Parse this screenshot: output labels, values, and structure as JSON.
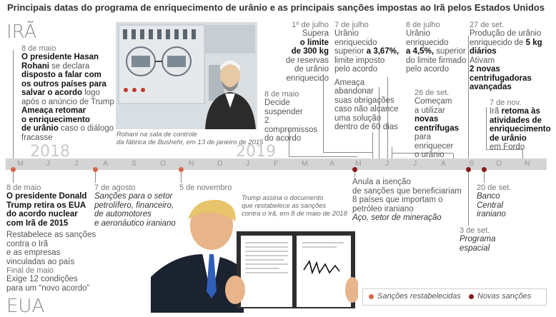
{
  "subtitle": "Principais datas do programa de enriquecimento de urânio e as principais sanções impostas ao Irã pelos Estados Unidos",
  "labels": {
    "iran": "IRÃ",
    "usa": "EUA",
    "year2018": "2018",
    "year2019": "2019"
  },
  "months": [
    "M",
    "J",
    "J",
    "A",
    "S",
    "O",
    "N",
    "D",
    "J",
    "F",
    "M",
    "A",
    "M",
    "J",
    "J",
    "A",
    "S",
    "O",
    "N"
  ],
  "iran_events": {
    "e1_date": "8 de maio",
    "e1_a": "O presidente Hasan",
    "e1_b_bold": "Rohani",
    "e1_b_rest": " se declara",
    "e1_c": "disposto a falar com",
    "e1_d": "os outros países para",
    "e1_e_bold": "salvar o acordo",
    "e1_e_rest": " logo",
    "e1_f": "após o anúncio de Trump",
    "e1_g": "Ameaça retomar",
    "e1_h": "o enriquecimento",
    "e1_i_bold": "de urânio",
    "e1_i_rest": " caso o diálogo",
    "e1_j": "fracasse",
    "e2_date": "8 de maio",
    "e2_a": "Decide",
    "e2_b": "suspender",
    "e2_c": "2 compromissos",
    "e2_d": "do acordo",
    "e3_date": "1º de julho",
    "e3_a": "Supera",
    "e3_b": "o limite",
    "e3_c": "de 300 kg",
    "e3_d": "de reservas",
    "e3_e": "de urânio",
    "e3_f": "enriquecido",
    "e4_date": "7 de julho",
    "e4_a": "Urânio enriquecido",
    "e4_b_rest": "superior ",
    "e4_b_bold": "a 3,67%,",
    "e4_c": "limite imposto",
    "e4_d": "pelo acordo",
    "e4_e": "Ameaça",
    "e4_f": "abandonar",
    "e4_g": "suas obrigações",
    "e4_h": "caso não alcance",
    "e4_i": "uma solução",
    "e4_j": "dentro de 60 dias",
    "e5_date": "8 de julho",
    "e5_a": "Urânio",
    "e5_b": "enriquecido",
    "e5_c_bold": "a 4,5%,",
    "e5_c_rest": " superior",
    "e5_d": "do limite firmado",
    "e5_e": "pelo acordo",
    "e6_date": "26 de set.",
    "e6_a": "Começam",
    "e6_b": "a utilizar",
    "e6_c": "novas",
    "e6_d": "centrífugas",
    "e6_e": "para enriquecer",
    "e6_f": "o urânio",
    "e7_date": "27 de set.",
    "e7_a": "Produção de urânio",
    "e7_b_rest": "enriquecido de ",
    "e7_b_bold": "5 kg",
    "e7_c": "diários",
    "e7_d": "Ativam",
    "e7_e": "2 novas",
    "e7_f": "centrifugadoras",
    "e7_g": "avançadas",
    "e8_date": "7 de nov.",
    "e8_a_rest": "Irã ",
    "e8_a_bold": "retoma às",
    "e8_b": "atividades de",
    "e8_c": "enriquecimento",
    "e8_d": "de urânio",
    "e8_e": "em Fordo"
  },
  "usa_events": {
    "u1_date": "8 de maio",
    "u1_a": "O presidente Donald",
    "u1_b": "Trump retira os EUA",
    "u1_c": "do acordo nuclear",
    "u1_d": "com Irã de 2015",
    "u1_e": "Restabelece as sanções",
    "u1_f": "contra o Irã",
    "u1_g": "e as empresas",
    "u1_h": "vinculadas ao país",
    "u1_i": "Final de maio",
    "u1_j": "Exige 12 condições",
    "u1_k": "para um “novo acordo”",
    "u2_date": "7 de agosto",
    "u2_a": "Sanções para o setor",
    "u2_b": "petrolífero, financeiro,",
    "u2_c": "de automotores",
    "u2_d": "e aeronáutico iraniano",
    "u3_date": "5 de novembro",
    "u4_a": "Anula a isenção",
    "u4_b": "de sanções que beneficiariam",
    "u4_c": "8 países que importam o",
    "u4_d": "petróleo iraniano",
    "u4_e": "Aço, setor de mineração",
    "u5_date": "3 de set.",
    "u5_a": "Programa",
    "u5_b": "espacial",
    "u6_date": "20 de set.",
    "u6_a": "Banco",
    "u6_b": "Central",
    "u6_c": "iraniano"
  },
  "captions": {
    "photo1_a": "Rohani na sala de controle",
    "photo1_b": "da fábrica de Bushehr, em 13 de janeiro de 2015",
    "photo2_a": "Trump assina o documento",
    "photo2_b": "que restabelece as sanções",
    "photo2_c": "contra o Irã, em 8 de maio de 2018"
  },
  "legend": {
    "restored": "Sanções restabelecidas",
    "new": "Novas sanções"
  },
  "colors": {
    "restored": "#d8674a",
    "new": "#8b1a1a",
    "axis": "#d4d4d4"
  }
}
